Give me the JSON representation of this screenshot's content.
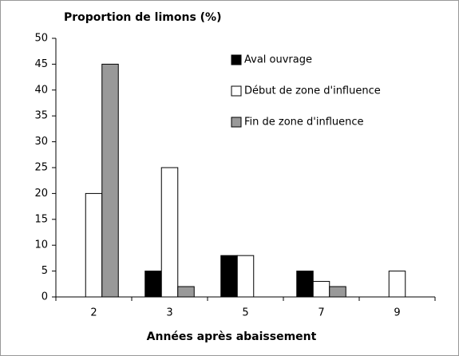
{
  "chart_data": {
    "type": "bar",
    "title": "Proportion de limons (%)",
    "x_label": "Années après abaissement",
    "categories": [
      "2",
      "3",
      "5",
      "7",
      "9"
    ],
    "series": [
      {
        "name": "Aval ouvrage",
        "color": "#000000",
        "values": [
          null,
          5,
          8,
          5,
          null
        ]
      },
      {
        "name": "Début de zone d'influence",
        "color": "#ffffff",
        "values": [
          20,
          25,
          8,
          3,
          5
        ]
      },
      {
        "name": "Fin de zone d'influence",
        "color": "#999999",
        "values": [
          45,
          2,
          null,
          2,
          null
        ]
      }
    ],
    "ylim": [
      0,
      50
    ],
    "yticks": [
      0,
      5,
      10,
      15,
      20,
      25,
      30,
      35,
      40,
      45,
      50
    ],
    "grid": false,
    "legend": "top-right"
  }
}
